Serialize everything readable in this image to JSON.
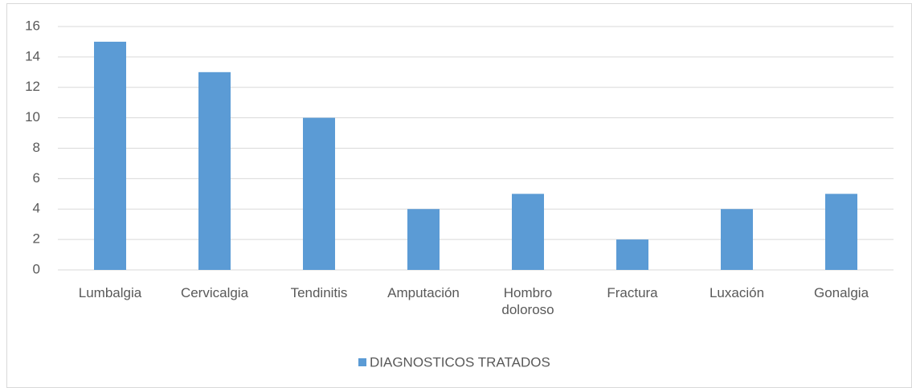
{
  "chart_data": {
    "type": "bar",
    "categories": [
      "Lumbalgia",
      "Cervicalgia",
      "Tendinitis",
      "Amputación",
      "Hombro doloroso",
      "Fractura",
      "Luxación",
      "Gonalgia"
    ],
    "series": [
      {
        "name": "DIAGNOSTICOS TRATADOS",
        "color": "#5b9bd5",
        "values": [
          15,
          13,
          10,
          4,
          5,
          2,
          4,
          5
        ]
      }
    ],
    "ylim": [
      0,
      16
    ],
    "yticks": [
      0,
      2,
      4,
      6,
      8,
      10,
      12,
      14,
      16
    ],
    "grid": true,
    "legend": "bottom"
  }
}
